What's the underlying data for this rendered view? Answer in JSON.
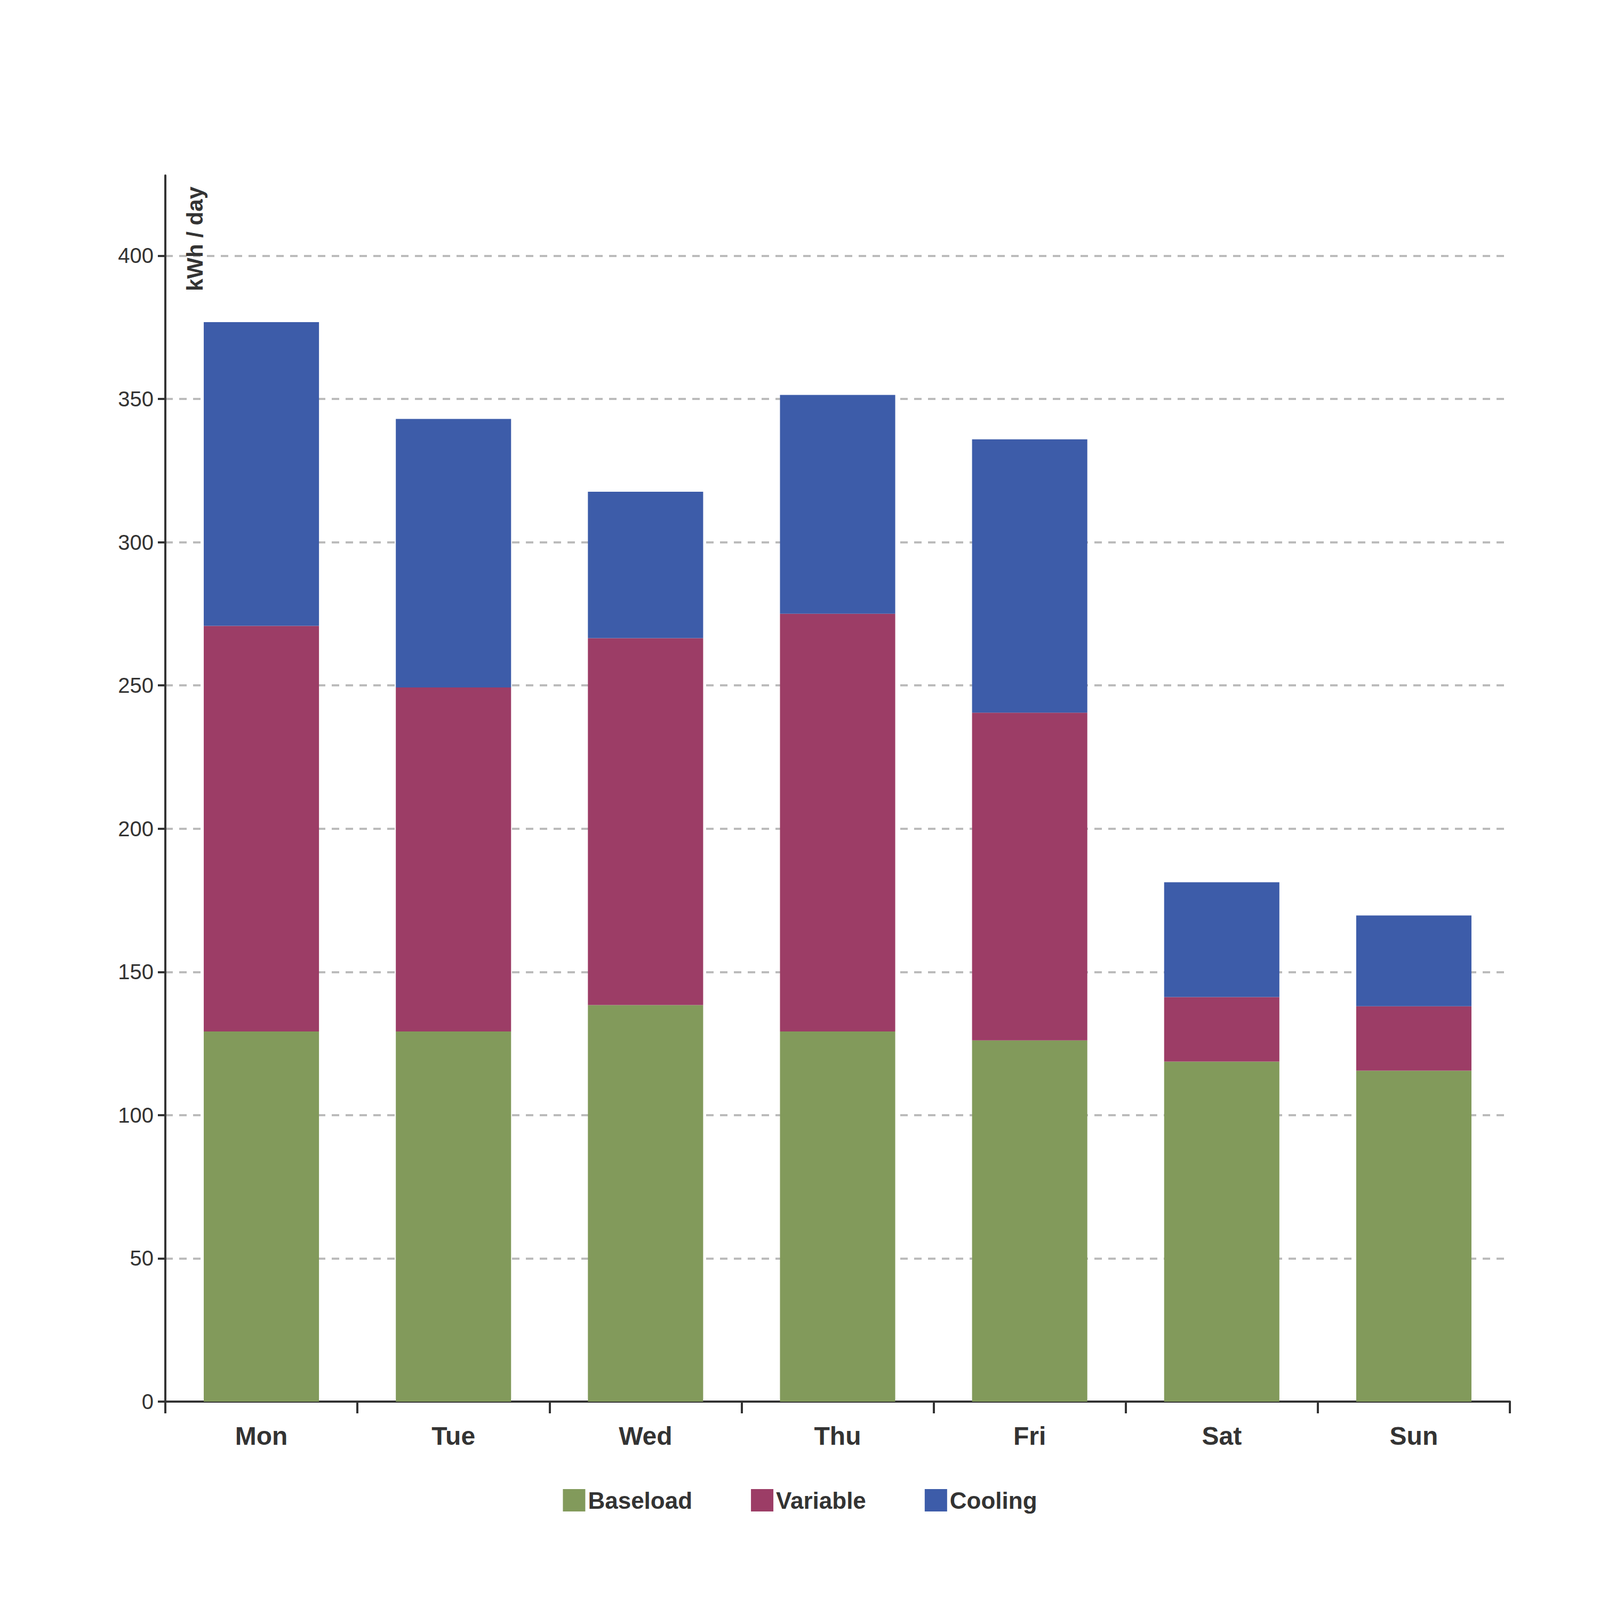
{
  "chart_data": {
    "type": "bar",
    "stacked": true,
    "ylabel": "kWh / day",
    "categories": [
      "Mon",
      "Tue",
      "Wed",
      "Thu",
      "Fri",
      "Sat",
      "Sun"
    ],
    "series": [
      {
        "name": "Baseload",
        "color": "#829a5b",
        "values": [
          129.2,
          129.2,
          138.4,
          129.2,
          126.1,
          118.7,
          115.5
        ]
      },
      {
        "name": "Variable",
        "color": "#9c3d66",
        "values": [
          141.6,
          120.1,
          128.1,
          145.8,
          114.4,
          22.5,
          22.5
        ]
      },
      {
        "name": "Cooling",
        "color": "#3d5ca9",
        "values": [
          106.0,
          93.7,
          51.1,
          76.4,
          95.4,
          40.1,
          31.7
        ]
      }
    ],
    "ylim": [
      0,
      428
    ],
    "yticks": [
      0,
      50,
      100,
      150,
      200,
      250,
      300,
      350,
      400
    ],
    "grid": true,
    "legend": "bottom"
  }
}
